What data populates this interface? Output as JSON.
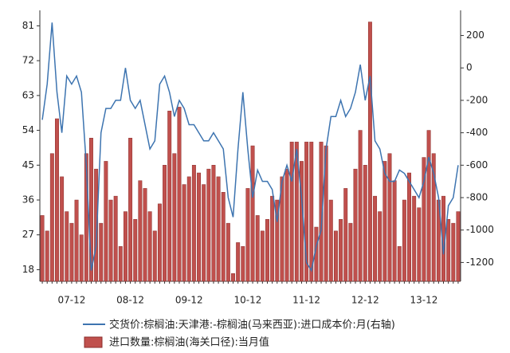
{
  "chart_data": {
    "type": "bar_line",
    "categories": [
      null,
      null,
      null,
      null,
      null,
      null,
      "07-12",
      null,
      null,
      null,
      null,
      null,
      null,
      null,
      null,
      null,
      null,
      null,
      "08-12",
      null,
      null,
      null,
      null,
      null,
      null,
      null,
      null,
      null,
      null,
      null,
      "09-12",
      null,
      null,
      null,
      null,
      null,
      null,
      null,
      null,
      null,
      null,
      null,
      "10-12",
      null,
      null,
      null,
      null,
      null,
      null,
      null,
      null,
      null,
      null,
      null,
      "11-12",
      null,
      null,
      null,
      null,
      null,
      null,
      null,
      null,
      null,
      null,
      null,
      "12-12",
      null,
      null,
      null,
      null,
      null,
      null,
      null,
      null,
      null,
      null,
      null,
      "13-12",
      null,
      null,
      null,
      null,
      null,
      null,
      null
    ],
    "series": [
      {
        "name": "进口数量:棕榈油(海关口径):当月值",
        "type": "bar",
        "color": "#c0504d",
        "values": [
          32,
          28,
          48,
          57,
          42,
          33,
          30,
          36,
          27,
          48,
          52,
          44,
          30,
          46,
          36,
          37,
          24,
          33,
          52,
          31,
          41,
          39,
          33,
          28,
          35,
          45,
          59,
          48,
          60,
          40,
          42,
          45,
          43,
          40,
          44,
          45,
          42,
          38,
          30,
          17,
          25,
          24,
          39,
          50,
          32,
          28,
          31,
          37,
          36,
          42,
          44,
          51,
          51,
          46,
          51,
          51,
          29,
          51,
          50,
          36,
          28,
          31,
          39,
          30,
          44,
          54,
          45,
          82,
          37,
          33,
          46,
          48,
          41,
          24,
          36,
          43,
          37,
          34,
          47,
          54,
          48,
          36,
          37,
          31,
          30,
          33
        ]
      },
      {
        "name": "交货价:棕榈油:天津港:-棕榈油(马来西亚):进口成本价:月(右轴)",
        "type": "line",
        "axis": "y2",
        "color": "#3d74b0",
        "values": [
          -320,
          -100,
          280,
          -150,
          -400,
          -50,
          -100,
          -50,
          -150,
          -600,
          -1250,
          -1100,
          -400,
          -250,
          -250,
          -200,
          -200,
          0,
          -200,
          -250,
          -200,
          -350,
          -500,
          -450,
          -100,
          -50,
          -150,
          -300,
          -200,
          -250,
          -350,
          -350,
          -400,
          -450,
          -450,
          -400,
          -450,
          -500,
          -800,
          -920,
          -500,
          -150,
          -500,
          -800,
          -630,
          -700,
          -700,
          -750,
          -950,
          -700,
          -600,
          -700,
          -500,
          -800,
          -1200,
          -1250,
          -1100,
          -1000,
          -500,
          -300,
          -300,
          -200,
          -300,
          -250,
          -150,
          20,
          -200,
          -50,
          -450,
          -500,
          -650,
          -700,
          -700,
          -630,
          -650,
          -700,
          -750,
          -800,
          -700,
          -550,
          -650,
          -800,
          -1150,
          -850,
          -800,
          -600
        ]
      }
    ],
    "ylim": [
      15,
      85
    ],
    "yticks": [
      18,
      27,
      36,
      45,
      54,
      63,
      72,
      81
    ],
    "y2lim": [
      -1316,
      355
    ],
    "y2ticks": [
      -1200,
      -1000,
      -800,
      -600,
      -400,
      -200,
      0,
      200
    ]
  }
}
